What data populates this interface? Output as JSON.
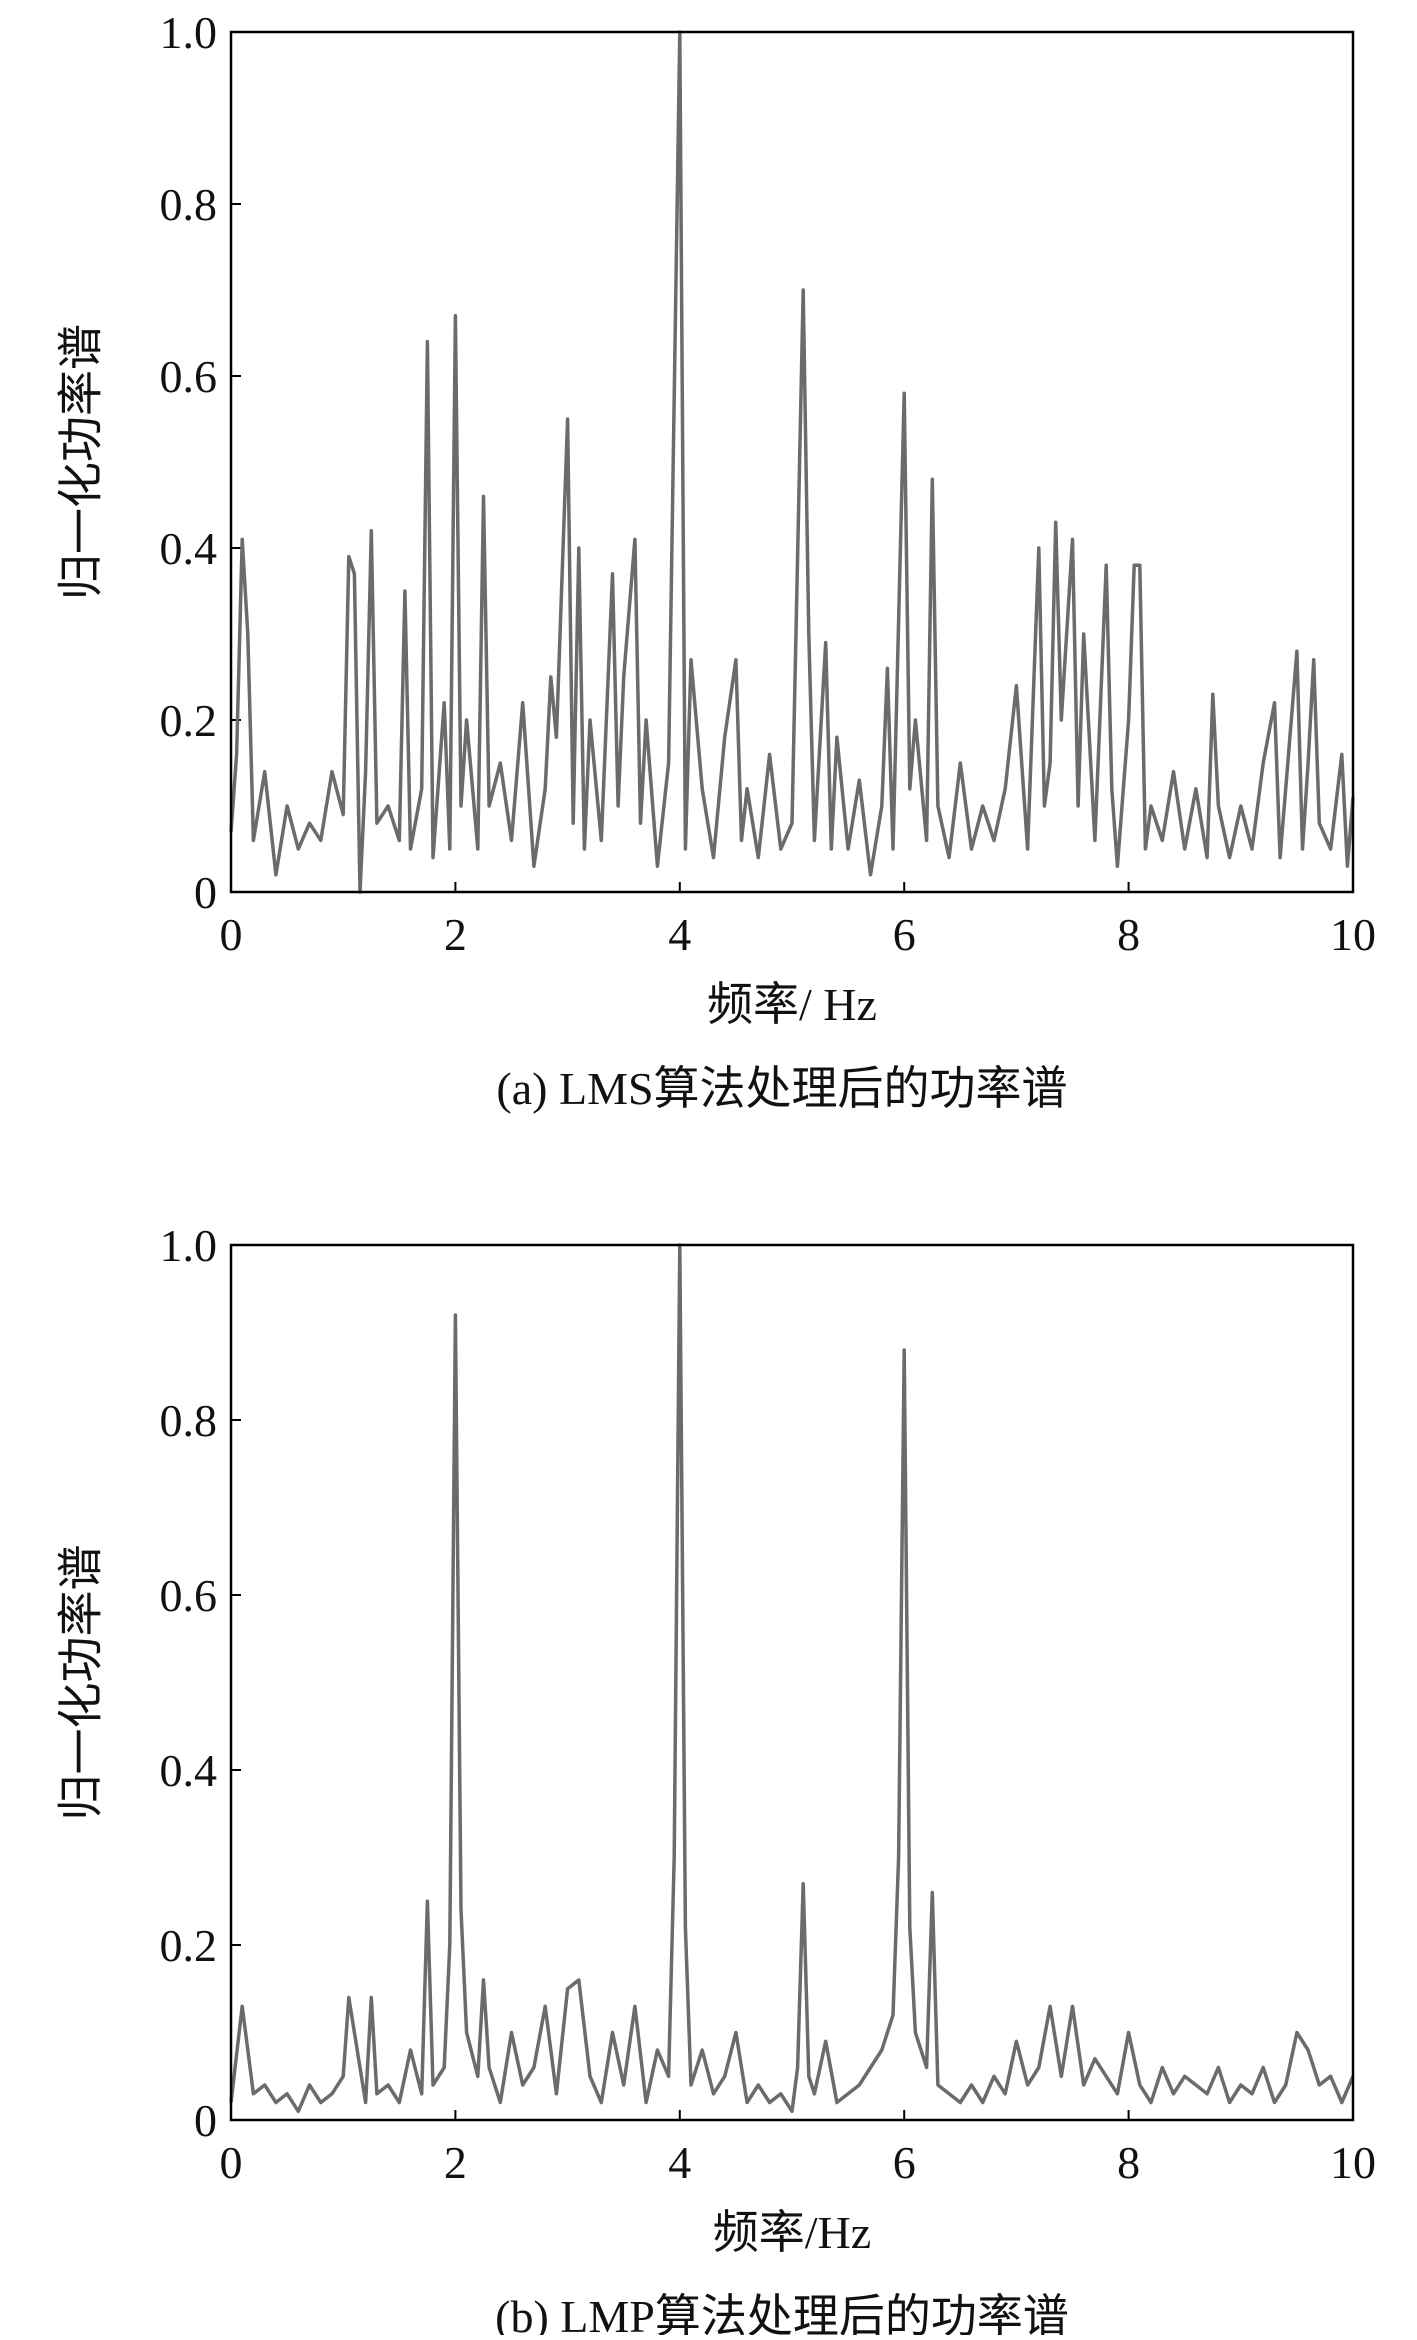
{
  "chart_data": [
    {
      "type": "line",
      "title": "(a) LMS算法处理后的功率谱",
      "xlabel": "频率/ Hz",
      "ylabel": "归一化功率谱",
      "color": "#6b6b6b",
      "xlim": [
        0,
        10
      ],
      "xticks": [
        0,
        2,
        4,
        6,
        8,
        10
      ],
      "ylim": [
        0,
        1
      ],
      "yticks": [
        0,
        0.2,
        0.4,
        0.6,
        0.8,
        {
          "value": 1,
          "label": "1.0"
        }
      ],
      "x": [
        0,
        0.05,
        0.1,
        0.15,
        0.2,
        0.3,
        0.4,
        0.5,
        0.6,
        0.7,
        0.8,
        0.9,
        1.0,
        1.05,
        1.1,
        1.15,
        1.2,
        1.25,
        1.3,
        1.4,
        1.5,
        1.55,
        1.6,
        1.7,
        1.75,
        1.8,
        1.9,
        1.95,
        2.0,
        2.05,
        2.1,
        2.2,
        2.25,
        2.3,
        2.4,
        2.5,
        2.6,
        2.7,
        2.8,
        2.85,
        2.9,
        3.0,
        3.05,
        3.1,
        3.15,
        3.2,
        3.3,
        3.4,
        3.45,
        3.5,
        3.6,
        3.65,
        3.7,
        3.8,
        3.9,
        4.0,
        4.05,
        4.1,
        4.2,
        4.3,
        4.4,
        4.5,
        4.55,
        4.6,
        4.7,
        4.8,
        4.9,
        5.0,
        5.1,
        5.15,
        5.2,
        5.3,
        5.35,
        5.4,
        5.5,
        5.6,
        5.7,
        5.8,
        5.85,
        5.9,
        6.0,
        6.05,
        6.1,
        6.2,
        6.25,
        6.3,
        6.4,
        6.5,
        6.6,
        6.7,
        6.8,
        6.9,
        7.0,
        7.1,
        7.2,
        7.25,
        7.3,
        7.35,
        7.4,
        7.5,
        7.55,
        7.6,
        7.7,
        7.8,
        7.85,
        7.9,
        8.0,
        8.05,
        8.1,
        8.15,
        8.2,
        8.3,
        8.4,
        8.5,
        8.6,
        8.7,
        8.75,
        8.8,
        8.9,
        9.0,
        9.1,
        9.2,
        9.3,
        9.35,
        9.4,
        9.5,
        9.55,
        9.6,
        9.65,
        9.7,
        9.8,
        9.9,
        9.95,
        10.0
      ],
      "values": [
        0.07,
        0.16,
        0.41,
        0.3,
        0.06,
        0.14,
        0.02,
        0.1,
        0.05,
        0.08,
        0.06,
        0.14,
        0.09,
        0.39,
        0.37,
        0.0,
        0.14,
        0.42,
        0.08,
        0.1,
        0.06,
        0.35,
        0.05,
        0.12,
        0.64,
        0.04,
        0.22,
        0.05,
        0.67,
        0.1,
        0.2,
        0.05,
        0.46,
        0.1,
        0.15,
        0.06,
        0.22,
        0.03,
        0.12,
        0.25,
        0.18,
        0.55,
        0.08,
        0.4,
        0.05,
        0.2,
        0.06,
        0.37,
        0.1,
        0.25,
        0.41,
        0.08,
        0.2,
        0.03,
        0.15,
        1.0,
        0.05,
        0.27,
        0.12,
        0.04,
        0.18,
        0.27,
        0.06,
        0.12,
        0.04,
        0.16,
        0.05,
        0.08,
        0.7,
        0.3,
        0.06,
        0.29,
        0.05,
        0.18,
        0.05,
        0.13,
        0.02,
        0.1,
        0.26,
        0.05,
        0.58,
        0.12,
        0.2,
        0.06,
        0.48,
        0.1,
        0.04,
        0.15,
        0.05,
        0.1,
        0.06,
        0.12,
        0.24,
        0.05,
        0.4,
        0.1,
        0.15,
        0.43,
        0.2,
        0.41,
        0.1,
        0.3,
        0.06,
        0.38,
        0.12,
        0.03,
        0.2,
        0.38,
        0.38,
        0.05,
        0.1,
        0.06,
        0.14,
        0.05,
        0.12,
        0.04,
        0.23,
        0.1,
        0.04,
        0.1,
        0.05,
        0.15,
        0.22,
        0.04,
        0.12,
        0.28,
        0.05,
        0.15,
        0.27,
        0.08,
        0.05,
        0.16,
        0.03,
        0.11
      ]
    },
    {
      "type": "line",
      "title": "(b) LMP算法处理后的功率谱",
      "xlabel": "频率/Hz",
      "ylabel": "归一化功率谱",
      "color": "#6b6b6b",
      "xlim": [
        0,
        10
      ],
      "xticks": [
        0,
        2,
        4,
        6,
        8,
        10
      ],
      "ylim": [
        0,
        1
      ],
      "yticks": [
        0,
        0.2,
        0.4,
        0.6,
        0.8,
        {
          "value": 1,
          "label": "1.0"
        }
      ],
      "x": [
        0,
        0.1,
        0.15,
        0.2,
        0.3,
        0.4,
        0.5,
        0.6,
        0.7,
        0.8,
        0.9,
        1.0,
        1.05,
        1.1,
        1.2,
        1.25,
        1.3,
        1.4,
        1.5,
        1.6,
        1.7,
        1.75,
        1.8,
        1.9,
        1.95,
        2.0,
        2.05,
        2.1,
        2.2,
        2.25,
        2.3,
        2.4,
        2.5,
        2.6,
        2.7,
        2.8,
        2.9,
        3.0,
        3.1,
        3.2,
        3.3,
        3.4,
        3.5,
        3.6,
        3.7,
        3.8,
        3.9,
        3.95,
        4.0,
        4.05,
        4.1,
        4.2,
        4.3,
        4.4,
        4.5,
        4.6,
        4.7,
        4.8,
        4.9,
        5.0,
        5.05,
        5.1,
        5.15,
        5.2,
        5.3,
        5.4,
        5.5,
        5.6,
        5.7,
        5.8,
        5.9,
        5.95,
        6.0,
        6.05,
        6.1,
        6.2,
        6.25,
        6.3,
        6.4,
        6.5,
        6.6,
        6.7,
        6.8,
        6.9,
        7.0,
        7.1,
        7.2,
        7.3,
        7.4,
        7.5,
        7.6,
        7.7,
        7.8,
        7.9,
        8.0,
        8.1,
        8.2,
        8.3,
        8.4,
        8.5,
        8.6,
        8.7,
        8.8,
        8.9,
        9.0,
        9.1,
        9.2,
        9.3,
        9.4,
        9.5,
        9.6,
        9.7,
        9.8,
        9.9,
        10.0
      ],
      "values": [
        0.02,
        0.13,
        0.08,
        0.03,
        0.04,
        0.02,
        0.03,
        0.01,
        0.04,
        0.02,
        0.03,
        0.05,
        0.14,
        0.1,
        0.02,
        0.14,
        0.03,
        0.04,
        0.02,
        0.08,
        0.03,
        0.25,
        0.04,
        0.06,
        0.2,
        0.92,
        0.24,
        0.1,
        0.05,
        0.16,
        0.06,
        0.02,
        0.1,
        0.04,
        0.06,
        0.13,
        0.03,
        0.15,
        0.16,
        0.05,
        0.02,
        0.1,
        0.04,
        0.13,
        0.02,
        0.08,
        0.05,
        0.3,
        1.0,
        0.22,
        0.04,
        0.08,
        0.03,
        0.05,
        0.1,
        0.02,
        0.04,
        0.02,
        0.03,
        0.01,
        0.06,
        0.27,
        0.05,
        0.03,
        0.09,
        0.02,
        0.03,
        0.04,
        0.06,
        0.08,
        0.12,
        0.3,
        0.88,
        0.22,
        0.1,
        0.06,
        0.26,
        0.04,
        0.03,
        0.02,
        0.04,
        0.02,
        0.05,
        0.03,
        0.09,
        0.04,
        0.06,
        0.13,
        0.05,
        0.13,
        0.04,
        0.07,
        0.05,
        0.03,
        0.1,
        0.04,
        0.02,
        0.06,
        0.03,
        0.05,
        0.04,
        0.03,
        0.06,
        0.02,
        0.04,
        0.03,
        0.06,
        0.02,
        0.04,
        0.1,
        0.08,
        0.04,
        0.05,
        0.02,
        0.05
      ]
    }
  ]
}
